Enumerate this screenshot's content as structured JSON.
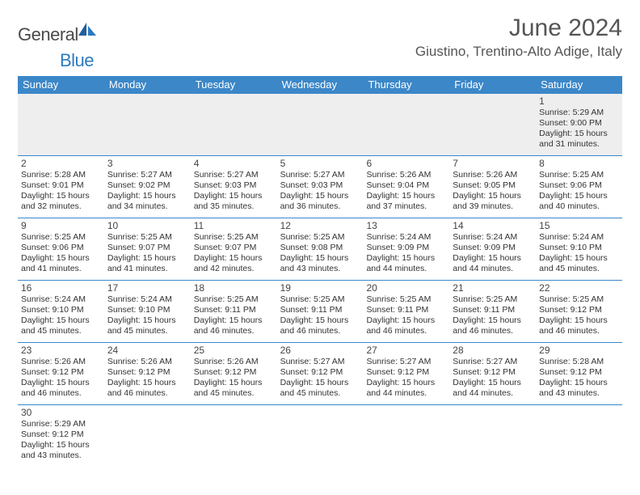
{
  "logo": {
    "text1": "General",
    "text2": "Blue"
  },
  "title": "June 2024",
  "location": "Giustino, Trentino-Alto Adige, Italy",
  "weekdays": [
    "Sunday",
    "Monday",
    "Tuesday",
    "Wednesday",
    "Thursday",
    "Friday",
    "Saturday"
  ],
  "colors": {
    "header_bg": "#3b87c8",
    "header_text": "#ffffff",
    "logo_blue": "#2b7bbf",
    "text": "#333333",
    "title_text": "#555555",
    "first_week_bg": "#eeeeee",
    "border": "#3b87c8"
  },
  "weeks": [
    [
      {
        "n": "",
        "lines": []
      },
      {
        "n": "",
        "lines": []
      },
      {
        "n": "",
        "lines": []
      },
      {
        "n": "",
        "lines": []
      },
      {
        "n": "",
        "lines": []
      },
      {
        "n": "",
        "lines": []
      },
      {
        "n": "1",
        "lines": [
          "Sunrise: 5:29 AM",
          "Sunset: 9:00 PM",
          "Daylight: 15 hours and 31 minutes."
        ]
      }
    ],
    [
      {
        "n": "2",
        "lines": [
          "Sunrise: 5:28 AM",
          "Sunset: 9:01 PM",
          "Daylight: 15 hours and 32 minutes."
        ]
      },
      {
        "n": "3",
        "lines": [
          "Sunrise: 5:27 AM",
          "Sunset: 9:02 PM",
          "Daylight: 15 hours and 34 minutes."
        ]
      },
      {
        "n": "4",
        "lines": [
          "Sunrise: 5:27 AM",
          "Sunset: 9:03 PM",
          "Daylight: 15 hours and 35 minutes."
        ]
      },
      {
        "n": "5",
        "lines": [
          "Sunrise: 5:27 AM",
          "Sunset: 9:03 PM",
          "Daylight: 15 hours and 36 minutes."
        ]
      },
      {
        "n": "6",
        "lines": [
          "Sunrise: 5:26 AM",
          "Sunset: 9:04 PM",
          "Daylight: 15 hours and 37 minutes."
        ]
      },
      {
        "n": "7",
        "lines": [
          "Sunrise: 5:26 AM",
          "Sunset: 9:05 PM",
          "Daylight: 15 hours and 39 minutes."
        ]
      },
      {
        "n": "8",
        "lines": [
          "Sunrise: 5:25 AM",
          "Sunset: 9:06 PM",
          "Daylight: 15 hours and 40 minutes."
        ]
      }
    ],
    [
      {
        "n": "9",
        "lines": [
          "Sunrise: 5:25 AM",
          "Sunset: 9:06 PM",
          "Daylight: 15 hours and 41 minutes."
        ]
      },
      {
        "n": "10",
        "lines": [
          "Sunrise: 5:25 AM",
          "Sunset: 9:07 PM",
          "Daylight: 15 hours and 41 minutes."
        ]
      },
      {
        "n": "11",
        "lines": [
          "Sunrise: 5:25 AM",
          "Sunset: 9:07 PM",
          "Daylight: 15 hours and 42 minutes."
        ]
      },
      {
        "n": "12",
        "lines": [
          "Sunrise: 5:25 AM",
          "Sunset: 9:08 PM",
          "Daylight: 15 hours and 43 minutes."
        ]
      },
      {
        "n": "13",
        "lines": [
          "Sunrise: 5:24 AM",
          "Sunset: 9:09 PM",
          "Daylight: 15 hours and 44 minutes."
        ]
      },
      {
        "n": "14",
        "lines": [
          "Sunrise: 5:24 AM",
          "Sunset: 9:09 PM",
          "Daylight: 15 hours and 44 minutes."
        ]
      },
      {
        "n": "15",
        "lines": [
          "Sunrise: 5:24 AM",
          "Sunset: 9:10 PM",
          "Daylight: 15 hours and 45 minutes."
        ]
      }
    ],
    [
      {
        "n": "16",
        "lines": [
          "Sunrise: 5:24 AM",
          "Sunset: 9:10 PM",
          "Daylight: 15 hours and 45 minutes."
        ]
      },
      {
        "n": "17",
        "lines": [
          "Sunrise: 5:24 AM",
          "Sunset: 9:10 PM",
          "Daylight: 15 hours and 45 minutes."
        ]
      },
      {
        "n": "18",
        "lines": [
          "Sunrise: 5:25 AM",
          "Sunset: 9:11 PM",
          "Daylight: 15 hours and 46 minutes."
        ]
      },
      {
        "n": "19",
        "lines": [
          "Sunrise: 5:25 AM",
          "Sunset: 9:11 PM",
          "Daylight: 15 hours and 46 minutes."
        ]
      },
      {
        "n": "20",
        "lines": [
          "Sunrise: 5:25 AM",
          "Sunset: 9:11 PM",
          "Daylight: 15 hours and 46 minutes."
        ]
      },
      {
        "n": "21",
        "lines": [
          "Sunrise: 5:25 AM",
          "Sunset: 9:11 PM",
          "Daylight: 15 hours and 46 minutes."
        ]
      },
      {
        "n": "22",
        "lines": [
          "Sunrise: 5:25 AM",
          "Sunset: 9:12 PM",
          "Daylight: 15 hours and 46 minutes."
        ]
      }
    ],
    [
      {
        "n": "23",
        "lines": [
          "Sunrise: 5:26 AM",
          "Sunset: 9:12 PM",
          "Daylight: 15 hours and 46 minutes."
        ]
      },
      {
        "n": "24",
        "lines": [
          "Sunrise: 5:26 AM",
          "Sunset: 9:12 PM",
          "Daylight: 15 hours and 46 minutes."
        ]
      },
      {
        "n": "25",
        "lines": [
          "Sunrise: 5:26 AM",
          "Sunset: 9:12 PM",
          "Daylight: 15 hours and 45 minutes."
        ]
      },
      {
        "n": "26",
        "lines": [
          "Sunrise: 5:27 AM",
          "Sunset: 9:12 PM",
          "Daylight: 15 hours and 45 minutes."
        ]
      },
      {
        "n": "27",
        "lines": [
          "Sunrise: 5:27 AM",
          "Sunset: 9:12 PM",
          "Daylight: 15 hours and 44 minutes."
        ]
      },
      {
        "n": "28",
        "lines": [
          "Sunrise: 5:27 AM",
          "Sunset: 9:12 PM",
          "Daylight: 15 hours and 44 minutes."
        ]
      },
      {
        "n": "29",
        "lines": [
          "Sunrise: 5:28 AM",
          "Sunset: 9:12 PM",
          "Daylight: 15 hours and 43 minutes."
        ]
      }
    ],
    [
      {
        "n": "30",
        "lines": [
          "Sunrise: 5:29 AM",
          "Sunset: 9:12 PM",
          "Daylight: 15 hours and 43 minutes."
        ]
      },
      {
        "n": "",
        "lines": []
      },
      {
        "n": "",
        "lines": []
      },
      {
        "n": "",
        "lines": []
      },
      {
        "n": "",
        "lines": []
      },
      {
        "n": "",
        "lines": []
      },
      {
        "n": "",
        "lines": []
      }
    ]
  ]
}
